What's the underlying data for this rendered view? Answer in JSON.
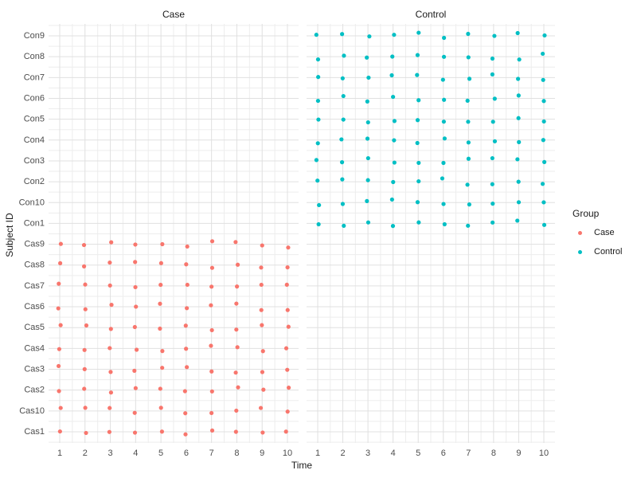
{
  "chart_data": {
    "type": "scatter",
    "faceted": true,
    "title": "",
    "xlabel": "Time",
    "ylabel": "Subject ID",
    "x": {
      "label": "Time",
      "ticks": [
        1,
        2,
        3,
        4,
        5,
        6,
        7,
        8,
        9,
        10
      ],
      "range": [
        0.55,
        10.45
      ]
    },
    "y": {
      "label": "Subject ID",
      "categories_top_to_bottom": [
        "Con9",
        "Con8",
        "Con7",
        "Con6",
        "Con5",
        "Con4",
        "Con3",
        "Con2",
        "Con10",
        "Con1",
        "Cas9",
        "Cas8",
        "Cas7",
        "Cas6",
        "Cas5",
        "Cas4",
        "Cas3",
        "Cas2",
        "Cas10",
        "Cas1"
      ]
    },
    "facets": [
      {
        "label": "Case",
        "group": "Case",
        "color": "#F8766D",
        "subjects": [
          "Cas1",
          "Cas10",
          "Cas2",
          "Cas3",
          "Cas4",
          "Cas5",
          "Cas6",
          "Cas7",
          "Cas8",
          "Cas9"
        ],
        "times": [
          1,
          2,
          3,
          4,
          5,
          6,
          7,
          8,
          9,
          10
        ],
        "design": "complete grid: one jittered point per subject at every time"
      },
      {
        "label": "Control",
        "group": "Control",
        "color": "#00BFC4",
        "subjects": [
          "Con1",
          "Con10",
          "Con2",
          "Con3",
          "Con4",
          "Con5",
          "Con6",
          "Con7",
          "Con8",
          "Con9"
        ],
        "times": [
          1,
          2,
          3,
          4,
          5,
          6,
          7,
          8,
          9,
          10
        ],
        "design": "complete grid: one jittered point per subject at every time"
      }
    ],
    "legend": {
      "title": "Group",
      "position": "right",
      "entries": [
        {
          "label": "Case",
          "color": "#F8766D"
        },
        {
          "label": "Control",
          "color": "#00BFC4"
        }
      ]
    },
    "grid": "major and minor gridlines on, no panel border, no axis ticks"
  },
  "style": {
    "background": "#FFFFFF",
    "grid_major_color": "#E0E0E0",
    "grid_minor_color": "#EDEDED",
    "tick_label_color": "#4D4D4D",
    "title_color": "#1A1A1A",
    "case_color": "#F8766D",
    "control_color": "#00BFC4"
  }
}
